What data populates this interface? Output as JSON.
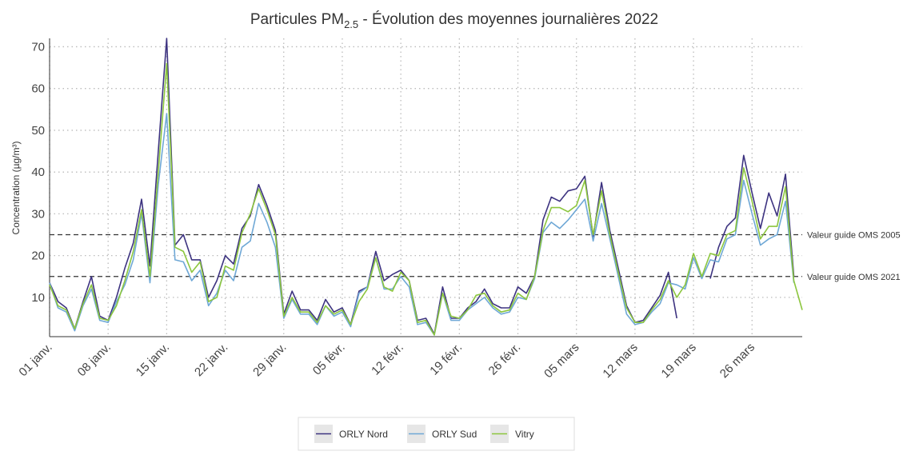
{
  "chart_data": {
    "type": "line",
    "title_prefix": "Particules PM",
    "title_subscript": "2.5",
    "title_suffix": " - Évolution des moyennes journalières 2022",
    "y_label": "Concentration (µg/m³)",
    "categories": [
      "01 janv.",
      null,
      null,
      null,
      null,
      null,
      null,
      "08 janv.",
      null,
      null,
      null,
      null,
      null,
      null,
      "15 janv.",
      null,
      null,
      null,
      null,
      null,
      null,
      "22 janv.",
      null,
      null,
      null,
      null,
      null,
      null,
      "29 janv.",
      null,
      null,
      null,
      null,
      null,
      null,
      "05 févr.",
      null,
      null,
      null,
      null,
      null,
      null,
      "12 févr.",
      null,
      null,
      null,
      null,
      null,
      null,
      "19 févr.",
      null,
      null,
      null,
      null,
      null,
      null,
      "26 févr.",
      null,
      null,
      null,
      null,
      null,
      null,
      "05 mars",
      null,
      null,
      null,
      null,
      null,
      null,
      "12 mars",
      null,
      null,
      null,
      null,
      null,
      null,
      "19 mars",
      null,
      null,
      null,
      null,
      null,
      null,
      "26 mars",
      null,
      null,
      null,
      null,
      null,
      null
    ],
    "series": [
      {
        "name": "ORLY Nord",
        "color": "#3d3380",
        "values": [
          13.5,
          9,
          7.5,
          2.5,
          9,
          15,
          5.5,
          4.5,
          10,
          17,
          23,
          33.5,
          17.5,
          45,
          72,
          22.5,
          25,
          19,
          19,
          10,
          14,
          20,
          18,
          26.5,
          29.5,
          37,
          32,
          26,
          6,
          11.5,
          7,
          7,
          4.5,
          9.5,
          6.5,
          7.5,
          3.5,
          11.5,
          12.5,
          21,
          14,
          15.5,
          16.5,
          14,
          4.5,
          5,
          1.2,
          12.5,
          5,
          5,
          7.5,
          9,
          12,
          8.5,
          7.5,
          7.5,
          12.5,
          11,
          15,
          28.5,
          34,
          33,
          35.5,
          36,
          39,
          24.5,
          37.5,
          26,
          17,
          8,
          4,
          4.5,
          7.5,
          10.5,
          16,
          5,
          null,
          null,
          null,
          14.5,
          22,
          27,
          29,
          44,
          35,
          26.5,
          35,
          29.5,
          39.5,
          15,
          null
        ]
      },
      {
        "name": "ORLY Sud",
        "color": "#6fa8d6",
        "values": [
          13.5,
          7.5,
          6.5,
          2,
          8,
          12,
          4.5,
          4,
          9,
          13,
          19,
          30,
          13.5,
          37,
          54,
          19,
          18.5,
          14,
          16.5,
          8,
          11,
          16.5,
          14,
          22,
          23.5,
          32.5,
          28,
          22,
          5,
          9.5,
          6,
          6,
          3.5,
          8,
          5.5,
          6.5,
          3,
          11,
          12.5,
          19.5,
          12,
          12,
          15,
          12.5,
          3.5,
          4,
          1,
          11,
          4.5,
          4.5,
          7,
          8.5,
          10,
          7.5,
          6,
          6.5,
          10,
          9.5,
          14.5,
          25.5,
          28,
          26.5,
          28.5,
          31,
          33.5,
          23.5,
          32.5,
          24,
          15,
          6,
          3.5,
          4,
          6.5,
          8.5,
          13.5,
          13,
          12,
          19.5,
          14.5,
          19,
          18.5,
          24,
          25,
          38,
          30,
          22.5,
          24,
          25,
          33,
          13.5,
          null
        ]
      },
      {
        "name": "Vitry",
        "color": "#8cc63e",
        "values": [
          13,
          8,
          7,
          2.5,
          8.5,
          13,
          5,
          4.5,
          8,
          14,
          21,
          31,
          15,
          40,
          66,
          22,
          21,
          16,
          18.5,
          9,
          10,
          17.5,
          16.5,
          25.5,
          30,
          36,
          31,
          25,
          5.5,
          10,
          6.5,
          6.5,
          4,
          8,
          6,
          7,
          3.5,
          9,
          12,
          19.5,
          12.5,
          11.5,
          16,
          14,
          4,
          4.5,
          1,
          11,
          5.5,
          5,
          7,
          10.5,
          11,
          8,
          6.5,
          7,
          11,
          9.5,
          15,
          26,
          31.5,
          31.5,
          30.5,
          32,
          38,
          25,
          35.5,
          25,
          16,
          7.5,
          4,
          4,
          7,
          9.5,
          14,
          10,
          13,
          20.5,
          15,
          20.5,
          20,
          25,
          26,
          41,
          33,
          24,
          27,
          27,
          36.5,
          14,
          7
        ]
      }
    ],
    "reference_lines": [
      {
        "value": 25,
        "label": "Valeur guide OMS 2005"
      },
      {
        "value": 15,
        "label": "Valeur guide OMS 2021"
      }
    ],
    "ylim": [
      0.6,
      72
    ],
    "yticks": [
      10,
      20,
      30,
      40,
      50,
      60,
      70
    ],
    "grid": true,
    "legend": "bottom"
  }
}
